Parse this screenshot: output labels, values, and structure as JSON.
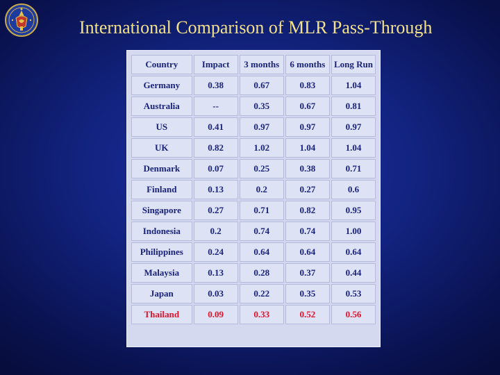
{
  "slide": {
    "title": "International Comparison of MLR Pass-Through",
    "logo_icon": "central-bank-seal-icon"
  },
  "table": {
    "columns": [
      "Country",
      "Impact",
      "3 months",
      "6 months",
      "Long Run"
    ],
    "rows": [
      [
        "Germany",
        "0.38",
        "0.67",
        "0.83",
        "1.04"
      ],
      [
        "Australia",
        "--",
        "0.35",
        "0.67",
        "0.81"
      ],
      [
        "US",
        "0.41",
        "0.97",
        "0.97",
        "0.97"
      ],
      [
        "UK",
        "0.82",
        "1.02",
        "1.04",
        "1.04"
      ],
      [
        "Denmark",
        "0.07",
        "0.25",
        "0.38",
        "0.71"
      ],
      [
        "Finland",
        "0.13",
        "0.2",
        "0.27",
        "0.6"
      ],
      [
        "Singapore",
        "0.27",
        "0.71",
        "0.82",
        "0.95"
      ],
      [
        "Indonesia",
        "0.2",
        "0.74",
        "0.74",
        "1.00"
      ],
      [
        "Philippines",
        "0.24",
        "0.64",
        "0.64",
        "0.64"
      ],
      [
        "Malaysia",
        "0.13",
        "0.28",
        "0.37",
        "0.44"
      ],
      [
        "Japan",
        "0.03",
        "0.22",
        "0.35",
        "0.53"
      ],
      [
        "Thailand",
        "0.09",
        "0.33",
        "0.52",
        "0.56"
      ]
    ],
    "highlight_row": "Thailand",
    "colors": {
      "title": "#f3e28a",
      "cell_text": "#1a237a",
      "highlight_text": "#e0122a",
      "background": "#12237f"
    }
  }
}
